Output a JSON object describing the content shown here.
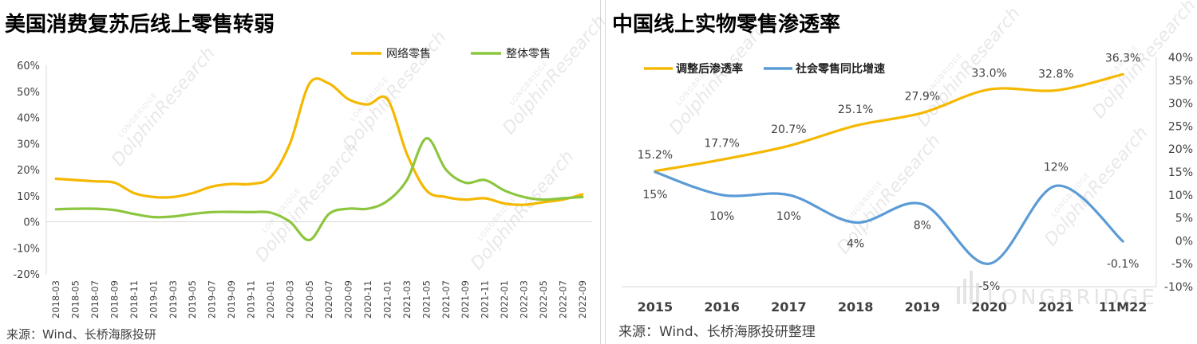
{
  "left": {
    "title": "美国消费复苏后线上零售转弱",
    "source": "来源：Wind、长桥海豚投研",
    "watermark_text": "DolphinResearch",
    "watermark_brand": "LONGBRIDGE",
    "chart_data": {
      "type": "line",
      "title": "美国消费复苏后线上零售转弱",
      "categories": [
        "2018-03",
        "2018-05",
        "2018-07",
        "2018-09",
        "2018-11",
        "2019-01",
        "2019-03",
        "2019-05",
        "2019-07",
        "2019-09",
        "2019-11",
        "2020-01",
        "2020-03",
        "2020-05",
        "2020-07",
        "2020-09",
        "2020-11",
        "2021-01",
        "2021-03",
        "2021-05",
        "2021-07",
        "2021-09",
        "2021-11",
        "2022-01",
        "2022-03",
        "2022-05",
        "2022-07",
        "2022-09"
      ],
      "series": [
        {
          "name": "网络零售",
          "color": "#F5B800",
          "values": [
            16.5,
            16,
            15.5,
            15,
            11,
            9.5,
            9.5,
            11,
            13.5,
            14.5,
            14.5,
            17,
            30,
            53,
            53,
            47,
            45,
            47,
            26,
            12,
            9.5,
            8.5,
            9,
            7,
            6.5,
            7.5,
            8.5,
            10.5
          ]
        },
        {
          "name": "整体零售",
          "color": "#8CC63F",
          "values": [
            4.8,
            5,
            5,
            4.5,
            3,
            1.8,
            2,
            3,
            3.7,
            3.8,
            3.7,
            3.5,
            0,
            -7,
            3,
            5,
            5,
            8,
            16,
            32,
            20,
            15,
            16,
            12,
            9.5,
            8.5,
            9,
            9.5
          ]
        }
      ],
      "ylim": [
        -20,
        60
      ],
      "yticks": [
        "60%",
        "50%",
        "40%",
        "30%",
        "20%",
        "10%",
        "0%",
        "-10%",
        "-20%"
      ],
      "legend": "top-right",
      "xlabel": "",
      "ylabel": ""
    }
  },
  "right": {
    "title": "中国线上实物零售渗透率",
    "source": "来源：Wind、长桥海豚投研整理",
    "brand_text": "LONGBRIDGE",
    "watermark_text": "DolphinResearch",
    "watermark_brand": "LONGBRIDGE",
    "chart_data": {
      "type": "line",
      "title": "中国线上实物零售渗透率",
      "categories": [
        "2015",
        "2016",
        "2017",
        "2018",
        "2019",
        "2020",
        "2021",
        "11M22"
      ],
      "series": [
        {
          "name": "调整后渗透率",
          "color": "#F5B800",
          "values": [
            15.2,
            17.7,
            20.7,
            25.1,
            27.9,
            33.0,
            32.8,
            36.3
          ],
          "labels": [
            "15.2%",
            "17.7%",
            "20.7%",
            "25.1%",
            "27.9%",
            "33.0%",
            "32.8%",
            "36.3%"
          ]
        },
        {
          "name": "社会零售同比增速",
          "color": "#5B9BD5",
          "values": [
            15,
            10,
            10,
            4,
            8,
            -5,
            12,
            -0.1
          ],
          "labels": [
            "15%",
            "10%",
            "10%",
            "4%",
            "8%",
            "-5%",
            "12%",
            "-0.1%"
          ]
        }
      ],
      "ylim": [
        -10,
        40
      ],
      "yticks": [
        "40%",
        "35%",
        "30%",
        "25%",
        "20%",
        "15%",
        "10%",
        "5%",
        "0%",
        "-5%",
        "-10%"
      ],
      "y_axis_side": "right",
      "legend": "top-left",
      "xlabel": "",
      "ylabel": ""
    }
  }
}
